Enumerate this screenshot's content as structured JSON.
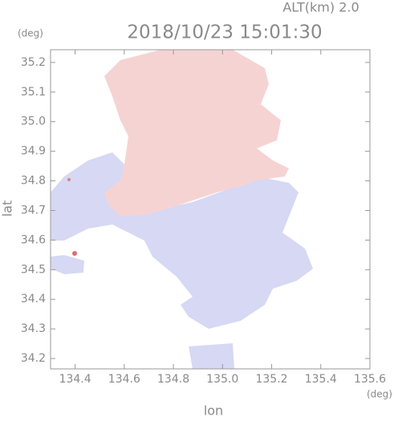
{
  "chart_data": {
    "type": "map",
    "title": "2018/10/23 15:01:30",
    "subtitle": "ALT(km) 2.0",
    "x_label": "lon",
    "x_unit": "(deg)",
    "y_label": "lat",
    "y_unit": "(deg)",
    "xlim": [
      134.3,
      135.6
    ],
    "xticks": [
      134.4,
      134.6,
      134.8,
      {
        "value": 135,
        "label": "135.0"
      },
      135.2,
      135.4,
      135.6
    ],
    "ylim": [
      34.165,
      35.243
    ],
    "yticks": [
      34.2,
      34.3,
      34.4,
      34.5,
      34.6,
      34.7,
      34.8,
      34.9,
      {
        "value": 35,
        "label": "35.0"
      },
      35.1,
      35.2
    ]
  }
}
